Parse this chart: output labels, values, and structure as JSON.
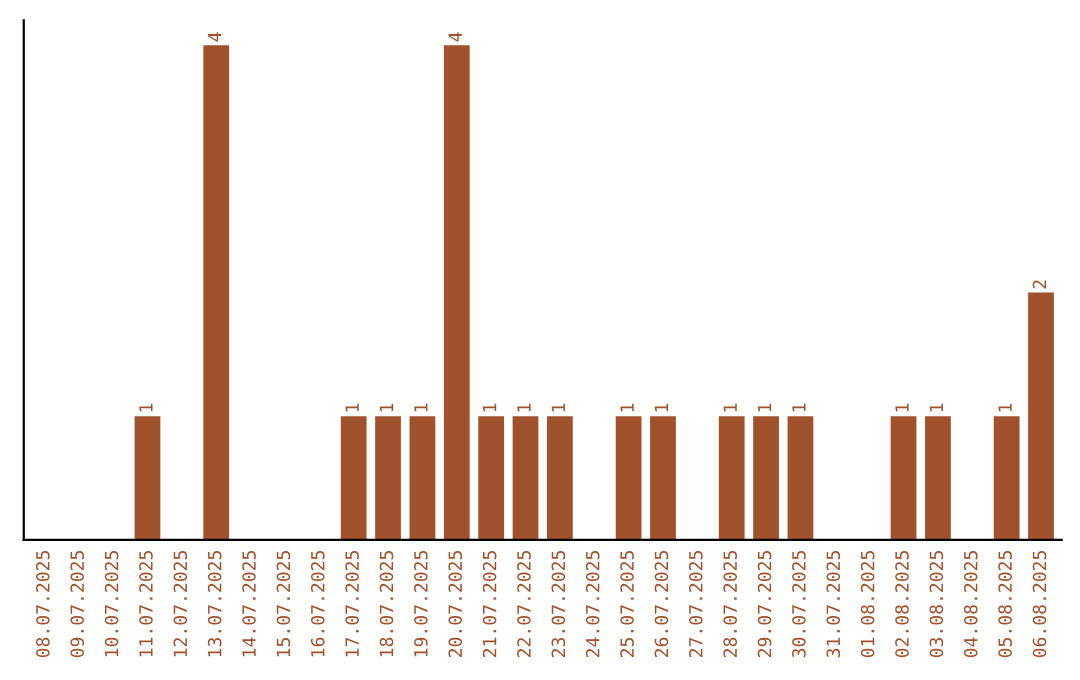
{
  "chart_data": {
    "type": "bar",
    "categories": [
      "08.07.2025",
      "09.07.2025",
      "10.07.2025",
      "11.07.2025",
      "12.07.2025",
      "13.07.2025",
      "14.07.2025",
      "15.07.2025",
      "16.07.2025",
      "17.07.2025",
      "18.07.2025",
      "19.07.2025",
      "20.07.2025",
      "21.07.2025",
      "22.07.2025",
      "23.07.2025",
      "24.07.2025",
      "25.07.2025",
      "26.07.2025",
      "27.07.2025",
      "28.07.2025",
      "29.07.2025",
      "30.07.2025",
      "31.07.2025",
      "01.08.2025",
      "02.08.2025",
      "03.08.2025",
      "04.08.2025",
      "05.08.2025",
      "06.08.2025"
    ],
    "values": [
      0,
      0,
      0,
      1,
      0,
      4,
      0,
      0,
      0,
      1,
      1,
      1,
      4,
      1,
      1,
      1,
      0,
      1,
      1,
      0,
      1,
      1,
      1,
      0,
      0,
      1,
      1,
      0,
      1,
      2
    ],
    "value_labels": [
      null,
      null,
      null,
      "1",
      null,
      "4",
      null,
      null,
      null,
      "1",
      "1",
      "1",
      "4",
      "1",
      "1",
      "1",
      null,
      "1",
      "1",
      null,
      "1",
      "1",
      "1",
      null,
      null,
      "1",
      "1",
      null,
      "1",
      "2"
    ],
    "color": "#a0522d",
    "tick_labels": "x",
    "grid": false,
    "legend": false
  }
}
